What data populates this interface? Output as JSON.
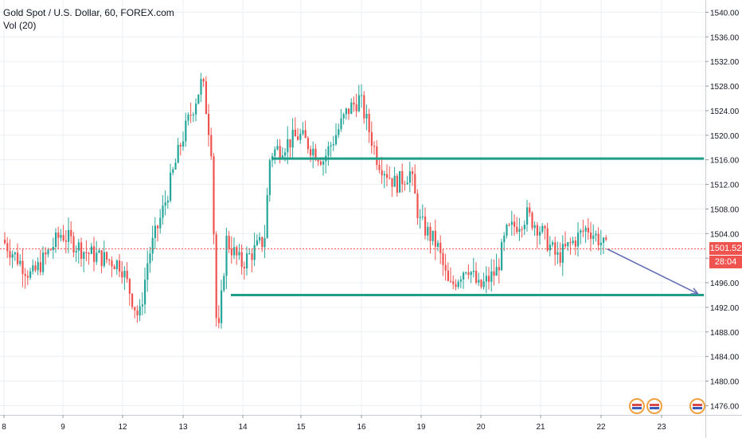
{
  "header": {
    "symbol_line": "Gold Spot / U.S. Dollar, 60, FOREX.com",
    "indicator_line": "Vol (20)"
  },
  "last_price": {
    "value": 1501.52,
    "label": "1501.52",
    "countdown": "28:04",
    "color": "#ef5350"
  },
  "colors": {
    "up": "#26a69a",
    "down": "#ef5350",
    "level_line": "#1f9e89",
    "arrow": "#6470b4",
    "grid": "#eceff2"
  },
  "chart_data": {
    "type": "candlestick",
    "y_axis_ticks": [
      1476,
      1480,
      1484,
      1488,
      1492,
      1496,
      1500,
      1504,
      1508,
      1512,
      1516,
      1520,
      1524,
      1528,
      1532,
      1536,
      1540
    ],
    "y_axis_labels": [
      "1476.00",
      "1480.00",
      "1484.00",
      "1488.00",
      "1492.00",
      "1496.00",
      "1500.00",
      "1504.00",
      "1508.00",
      "1512.00",
      "1516.00",
      "1520.00",
      "1524.00",
      "1528.00",
      "1532.00",
      "1536.00",
      "1540.00"
    ],
    "ylim": [
      1474.5,
      1542
    ],
    "x_axis_labels": [
      "8",
      "9",
      "12",
      "13",
      "14",
      "15",
      "16",
      "19",
      "20",
      "21",
      "22",
      "23"
    ],
    "path": [
      [
        "8",
        1503
      ],
      [
        "8.5",
        1497
      ],
      [
        "9",
        1504
      ],
      [
        "9.4",
        1501
      ],
      [
        "12",
        1499
      ],
      [
        "12.3",
        1490
      ],
      [
        "12.45",
        1500
      ],
      [
        "12.7",
        1508
      ],
      [
        "13",
        1519
      ],
      [
        "13.35",
        1529
      ],
      [
        "13.5",
        1518
      ],
      [
        "13.6",
        1485
      ],
      [
        "13.75",
        1503
      ],
      [
        "14",
        1499
      ],
      [
        "14.4",
        1503
      ],
      [
        "14.5",
        1517
      ],
      [
        "15",
        1520
      ],
      [
        "15.4",
        1516
      ],
      [
        "15.8",
        1524
      ],
      [
        "16",
        1526
      ],
      [
        "16.3",
        1516
      ],
      [
        "16.6",
        1512
      ],
      [
        "16.85",
        1514
      ],
      [
        "19",
        1506
      ],
      [
        "19.3",
        1502
      ],
      [
        "19.5",
        1495
      ],
      [
        "19.8",
        1499
      ],
      [
        "20",
        1495
      ],
      [
        "20.3",
        1498
      ],
      [
        "20.45",
        1504
      ],
      [
        "20.8",
        1507
      ],
      [
        "21",
        1505
      ],
      [
        "21.3",
        1500
      ],
      [
        "21.6",
        1503
      ],
      [
        "21.8",
        1505
      ],
      [
        "22",
        1503
      ],
      [
        "22.1",
        1501.5
      ]
    ],
    "levels": [
      {
        "name": "resistance",
        "value": 1516.2,
        "from": "14.5",
        "to": "23.7"
      },
      {
        "name": "support",
        "value": 1494.0,
        "from": "13.8",
        "to": "23.7"
      }
    ],
    "projection": {
      "from": [
        "22.1",
        1501.5
      ],
      "to": [
        "23.6",
        1494.2
      ]
    },
    "last_price_line": 1501.52
  }
}
